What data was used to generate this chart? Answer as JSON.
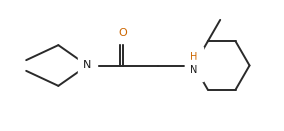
{
  "background": "#ffffff",
  "bond_color": "#2a2a2a",
  "bond_lw": 1.4,
  "text_color_N": "#1a1a1a",
  "text_color_O": "#cc6600",
  "text_color_NH_H": "#cc6600",
  "text_color_NH_N": "#1a1a1a",
  "figsize": [
    2.84,
    1.31
  ],
  "dpi": 100,
  "font_size": 8.0,
  "xlim": [
    -0.3,
    9.5
  ],
  "ylim": [
    -1.0,
    3.8
  ]
}
